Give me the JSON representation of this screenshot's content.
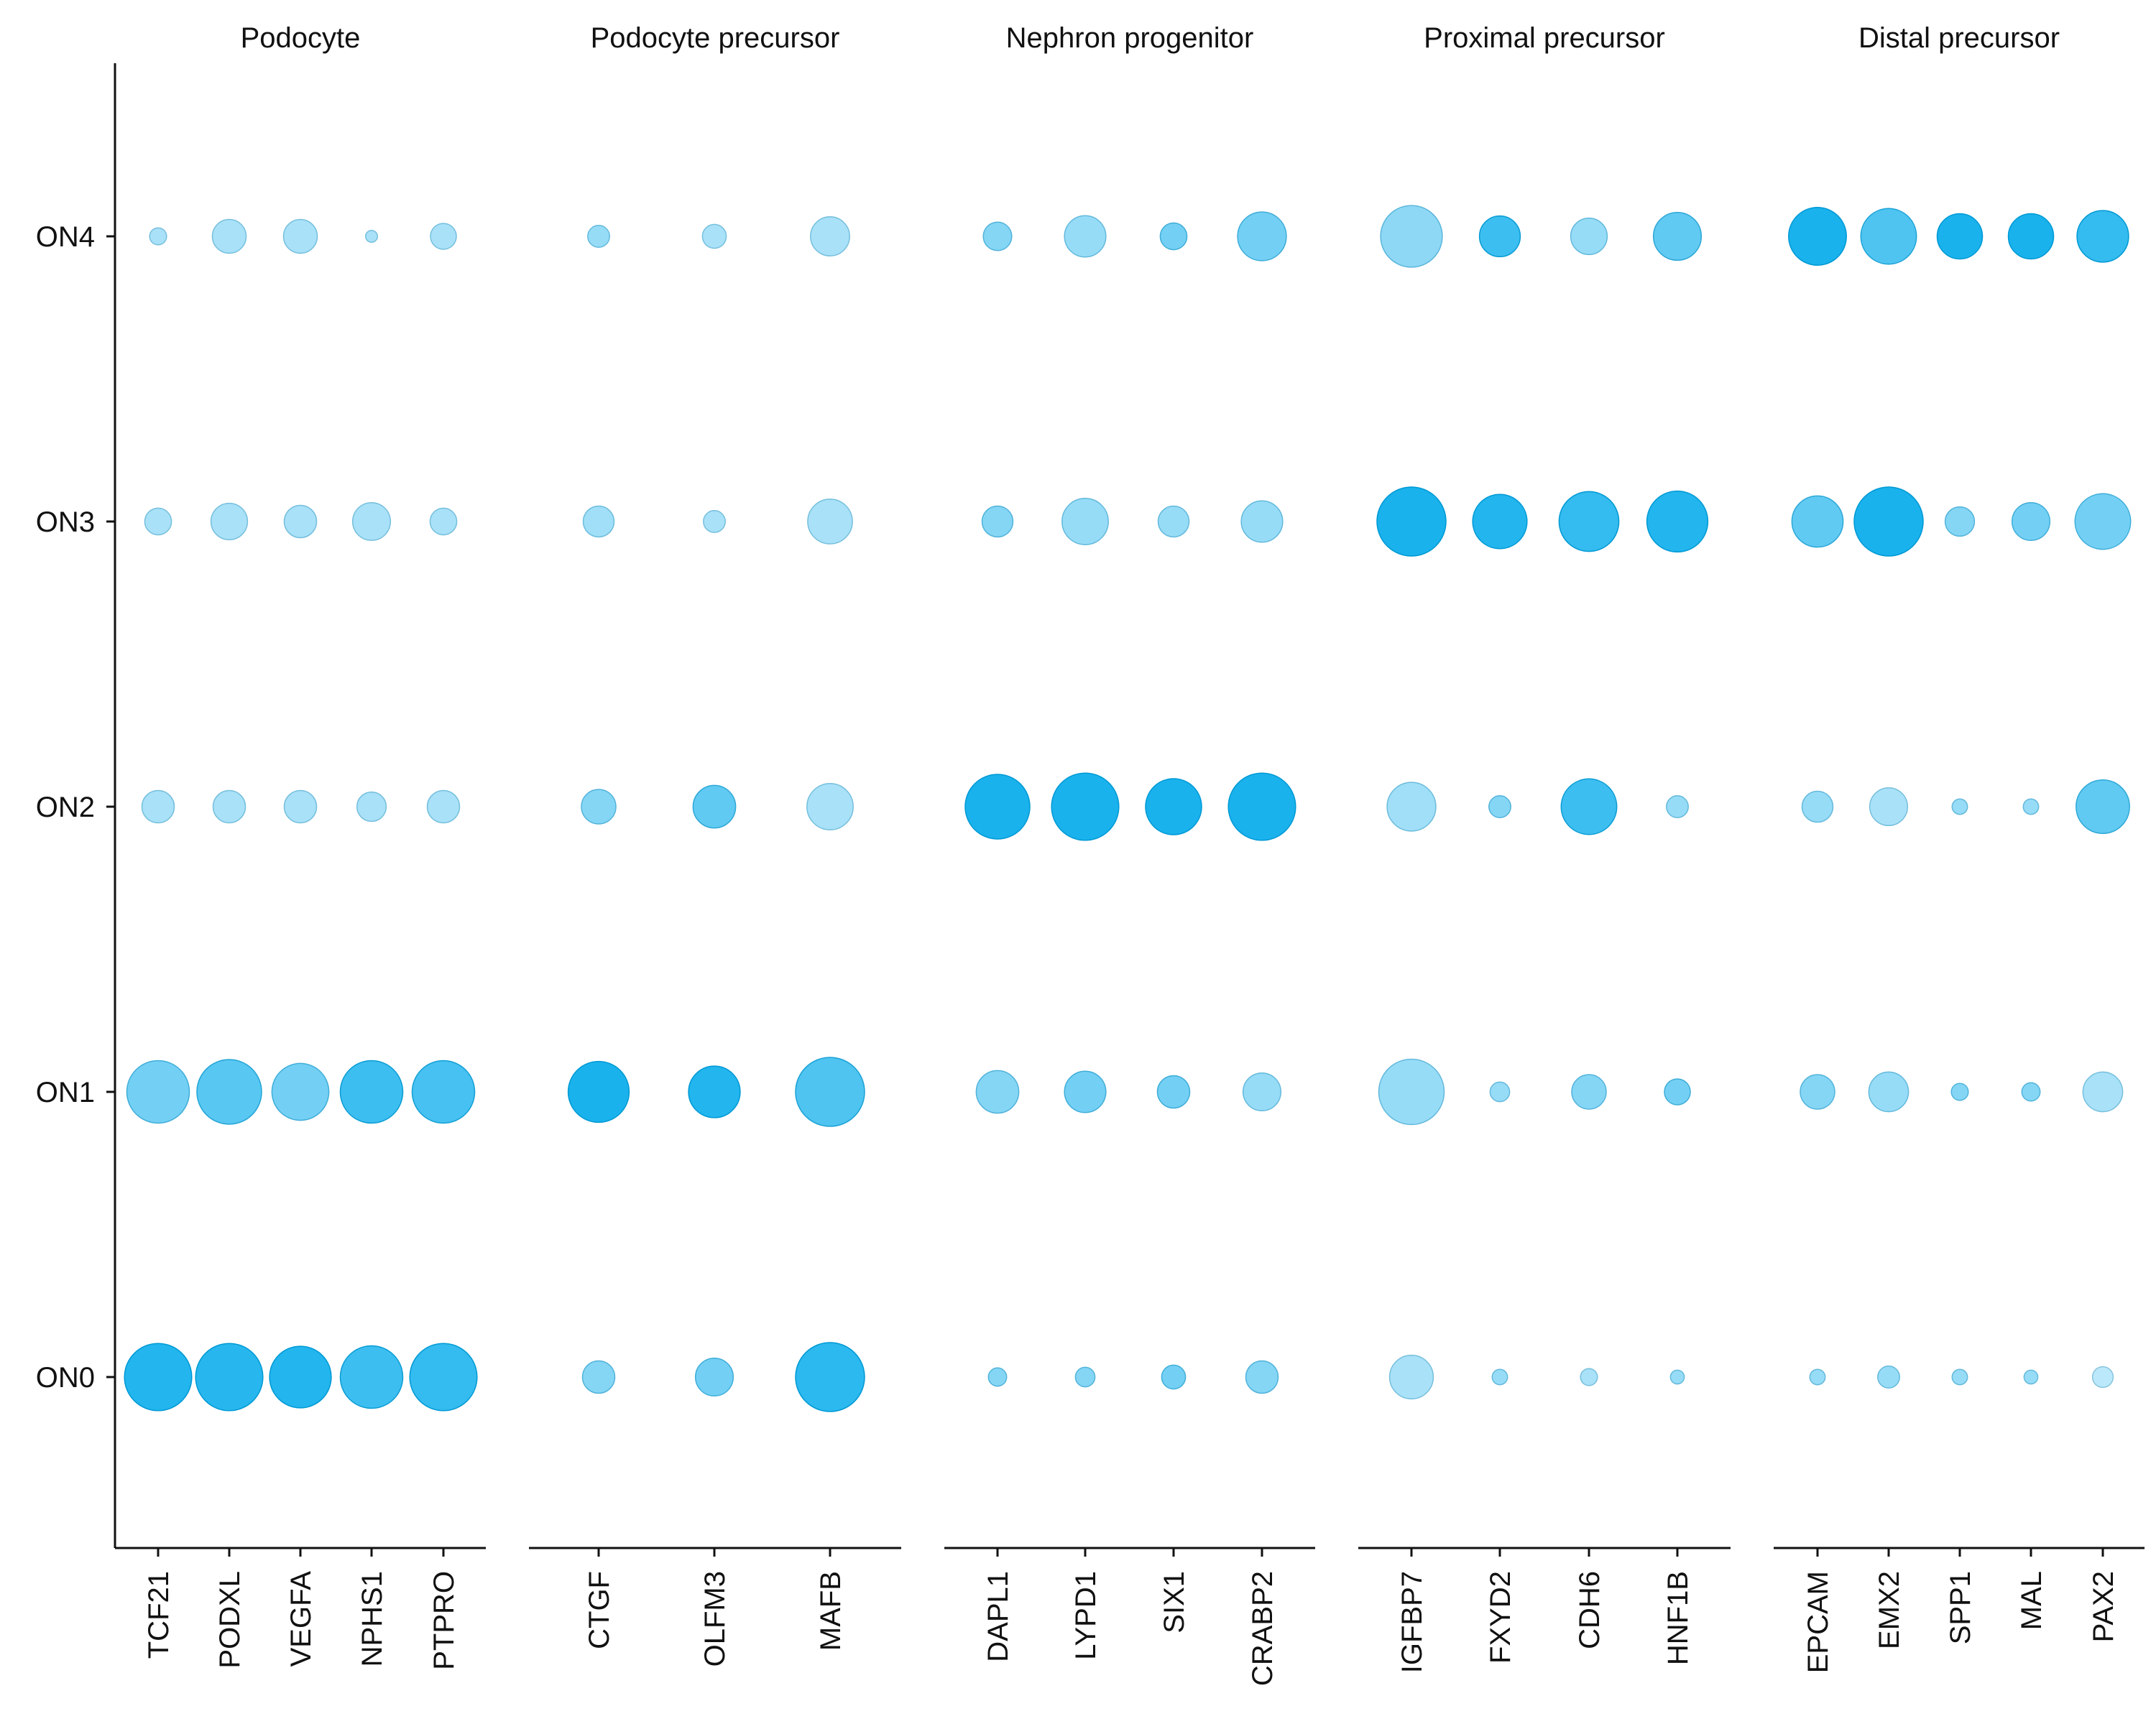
{
  "chart_data": {
    "type": "dotplot",
    "y_categories": [
      "ON0",
      "ON1",
      "ON2",
      "ON3",
      "ON4"
    ],
    "panels": [
      {
        "title": "Podocyte",
        "genes": [
          "TCF21",
          "PODXL",
          "VEGFA",
          "NPHS1",
          "PTPRO"
        ],
        "size": [
          [
            0.95,
            0.95,
            0.8,
            0.82,
            0.95
          ],
          [
            0.82,
            0.88,
            0.68,
            0.82,
            0.82
          ],
          [
            0.22,
            0.22,
            0.22,
            0.18,
            0.22
          ],
          [
            0.15,
            0.28,
            0.22,
            0.3,
            0.15
          ],
          [
            0.06,
            0.24,
            0.24,
            0.03,
            0.14
          ]
        ],
        "expr": [
          [
            0.95,
            0.92,
            0.95,
            0.8,
            0.85
          ],
          [
            0.5,
            0.65,
            0.5,
            0.8,
            0.75
          ],
          [
            0.2,
            0.2,
            0.2,
            0.2,
            0.2
          ],
          [
            0.2,
            0.2,
            0.2,
            0.2,
            0.2
          ],
          [
            0.2,
            0.2,
            0.2,
            0.2,
            0.2
          ]
        ]
      },
      {
        "title": "Podocyte precursor",
        "genes": [
          "CTGF",
          "OLFM3",
          "MAFB"
        ],
        "size": [
          [
            0.22,
            0.3,
            1.0
          ],
          [
            0.78,
            0.56,
            1.0
          ],
          [
            0.25,
            0.38,
            0.45
          ],
          [
            0.2,
            0.1,
            0.42
          ],
          [
            0.1,
            0.12,
            0.32
          ]
        ],
        "expr": [
          [
            0.4,
            0.5,
            0.9
          ],
          [
            1.0,
            0.95,
            0.7
          ],
          [
            0.4,
            0.6,
            0.2
          ],
          [
            0.25,
            0.2,
            0.2
          ],
          [
            0.3,
            0.2,
            0.2
          ]
        ]
      },
      {
        "title": "Nephron progenitor",
        "genes": [
          "DAPL1",
          "LYPD1",
          "SIX1",
          "CRABP2"
        ],
        "size": [
          [
            0.07,
            0.08,
            0.12,
            0.22
          ],
          [
            0.38,
            0.36,
            0.22,
            0.3
          ],
          [
            0.88,
            0.95,
            0.66,
            0.95
          ],
          [
            0.2,
            0.45,
            0.2,
            0.36
          ],
          [
            0.17,
            0.36,
            0.15,
            0.5
          ]
        ],
        "expr": [
          [
            0.4,
            0.4,
            0.5,
            0.4
          ],
          [
            0.4,
            0.5,
            0.5,
            0.3
          ],
          [
            1.0,
            1.0,
            1.0,
            1.0
          ],
          [
            0.4,
            0.3,
            0.3,
            0.3
          ],
          [
            0.4,
            0.3,
            0.5,
            0.5
          ]
        ]
      },
      {
        "title": "Proximal precursor",
        "genes": [
          "IGFBP7",
          "FXYD2",
          "CDH6",
          "HNF1B"
        ],
        "size": [
          [
            0.4,
            0.05,
            0.06,
            0.04
          ],
          [
            0.9,
            0.08,
            0.25,
            0.14
          ],
          [
            0.5,
            0.1,
            0.65,
            0.1
          ],
          [
            1.0,
            0.62,
            0.75,
            0.78
          ],
          [
            0.8,
            0.35,
            0.28,
            0.48
          ]
        ],
        "expr": [
          [
            0.2,
            0.3,
            0.2,
            0.3
          ],
          [
            0.3,
            0.3,
            0.4,
            0.5
          ],
          [
            0.25,
            0.4,
            0.8,
            0.3
          ],
          [
            1.0,
            0.95,
            0.85,
            0.95
          ],
          [
            0.35,
            0.8,
            0.3,
            0.6
          ]
        ]
      },
      {
        "title": "Distal precursor",
        "genes": [
          "EPCAM",
          "EMX2",
          "SPP1",
          "MAL",
          "PAX2"
        ],
        "size": [
          [
            0.05,
            0.1,
            0.05,
            0.04,
            0.09
          ],
          [
            0.25,
            0.33,
            0.06,
            0.07,
            0.33
          ],
          [
            0.2,
            0.3,
            0.05,
            0.05,
            0.6
          ],
          [
            0.55,
            1.0,
            0.18,
            0.3,
            0.65
          ],
          [
            0.7,
            0.65,
            0.43,
            0.43,
            0.56
          ]
        ],
        "expr": [
          [
            0.3,
            0.3,
            0.3,
            0.3,
            0.1
          ],
          [
            0.4,
            0.3,
            0.4,
            0.4,
            0.2
          ],
          [
            0.3,
            0.2,
            0.3,
            0.3,
            0.6
          ],
          [
            0.6,
            1.0,
            0.4,
            0.5,
            0.5
          ],
          [
            1.0,
            0.7,
            1.0,
            1.0,
            0.85
          ]
        ]
      }
    ]
  }
}
